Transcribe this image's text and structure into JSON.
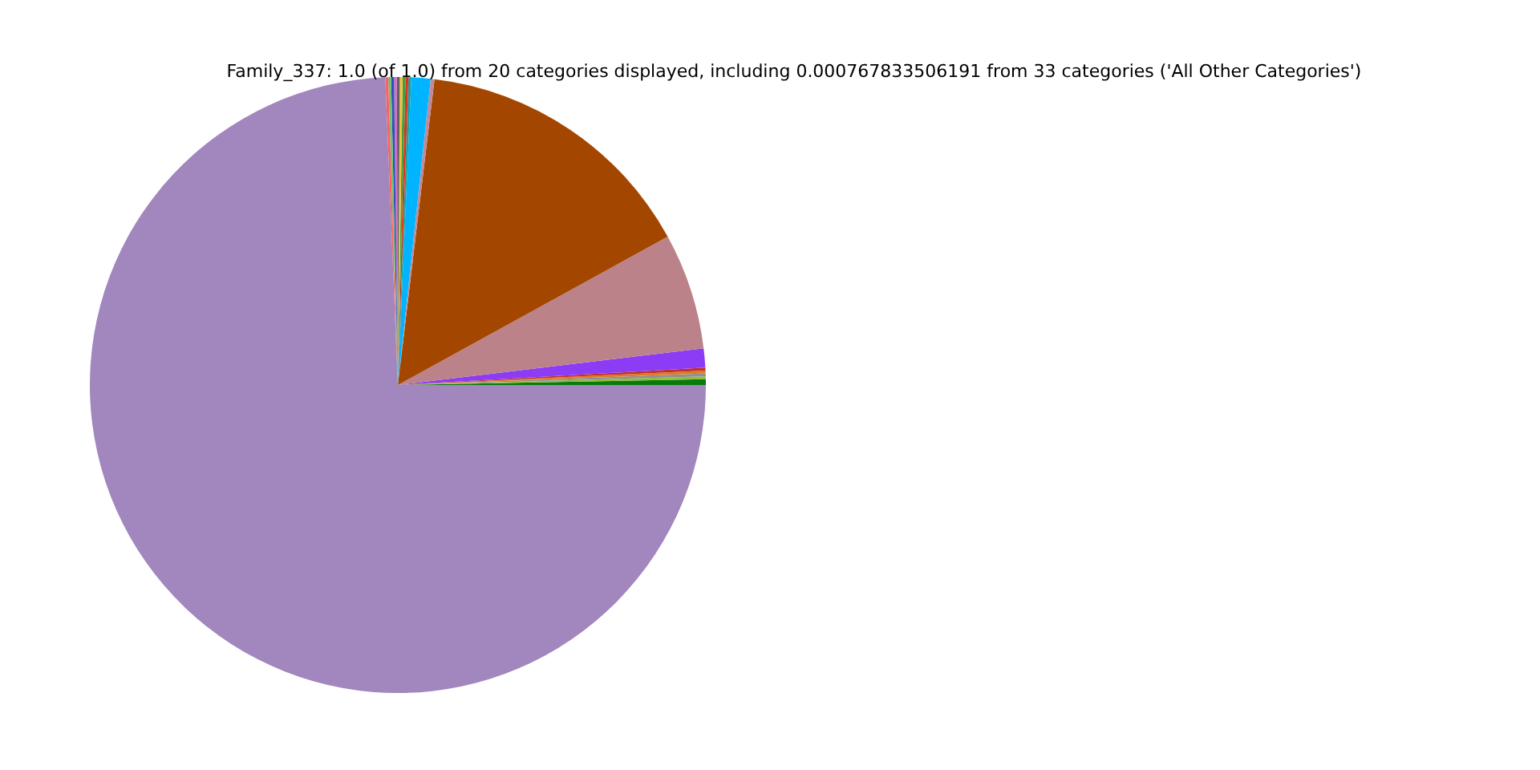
{
  "chart_data": {
    "type": "pie",
    "title": "Family_337: 1.0 (of 1.0) from 20 categories displayed, including 0.000767833506191 from 33 categories ('All Other Categories')",
    "categories": [
      null,
      null,
      null,
      null,
      null,
      null,
      null,
      null,
      null,
      null,
      null,
      null,
      null,
      null,
      null,
      null,
      null,
      null,
      null,
      null
    ],
    "values": [
      0.3,
      0.15,
      0.15,
      0.15,
      0.15,
      1.0,
      6.1,
      15.1,
      0.2,
      1.0,
      0.15,
      0.15,
      0.15,
      0.15,
      0.15,
      0.15,
      0.15,
      0.15,
      0.15,
      74.35
    ],
    "colors": [
      "#0a7a0a",
      "#8fbc3c",
      "#909090",
      "#e07a20",
      "#c03030",
      "#8c3cf5",
      "#bc8289",
      "#a34700",
      "#c08a9a",
      "#00b4ff",
      "#20a0a0",
      "#e03020",
      "#40a040",
      "#f0c040",
      "#606060",
      "#d070c0",
      "#3050c0",
      "#70c070",
      "#ff6060",
      "#a286be"
    ]
  }
}
